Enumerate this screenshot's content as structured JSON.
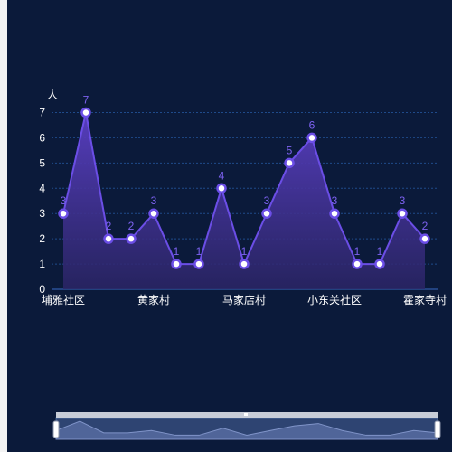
{
  "chart_data": {
    "type": "line",
    "title": "",
    "ylabel": "人",
    "xlabel": "",
    "ylim": [
      0,
      7
    ],
    "yticks": [
      0,
      1,
      2,
      3,
      4,
      5,
      6,
      7
    ],
    "grid": true,
    "x_tick_labels": [
      "埔雅社区",
      "黄家村",
      "马家店村",
      "小东关社区",
      "霍家寺村"
    ],
    "x_tick_positions": [
      0,
      4,
      8,
      12,
      16
    ],
    "values": [
      3,
      7,
      2,
      2,
      3,
      1,
      1,
      4,
      1,
      3,
      5,
      6,
      3,
      1,
      1,
      3,
      2
    ],
    "data_labels": true,
    "colors": {
      "line": "#6b4ee6",
      "area_top": "#5a3fc4",
      "area_bottom": "#2b2566",
      "label": "#7d62f0",
      "grid": "#1f4a8a",
      "text": "#ffffff",
      "background": "#0b1a3a"
    },
    "datazoom": {
      "range_percent": [
        0,
        100
      ]
    }
  }
}
